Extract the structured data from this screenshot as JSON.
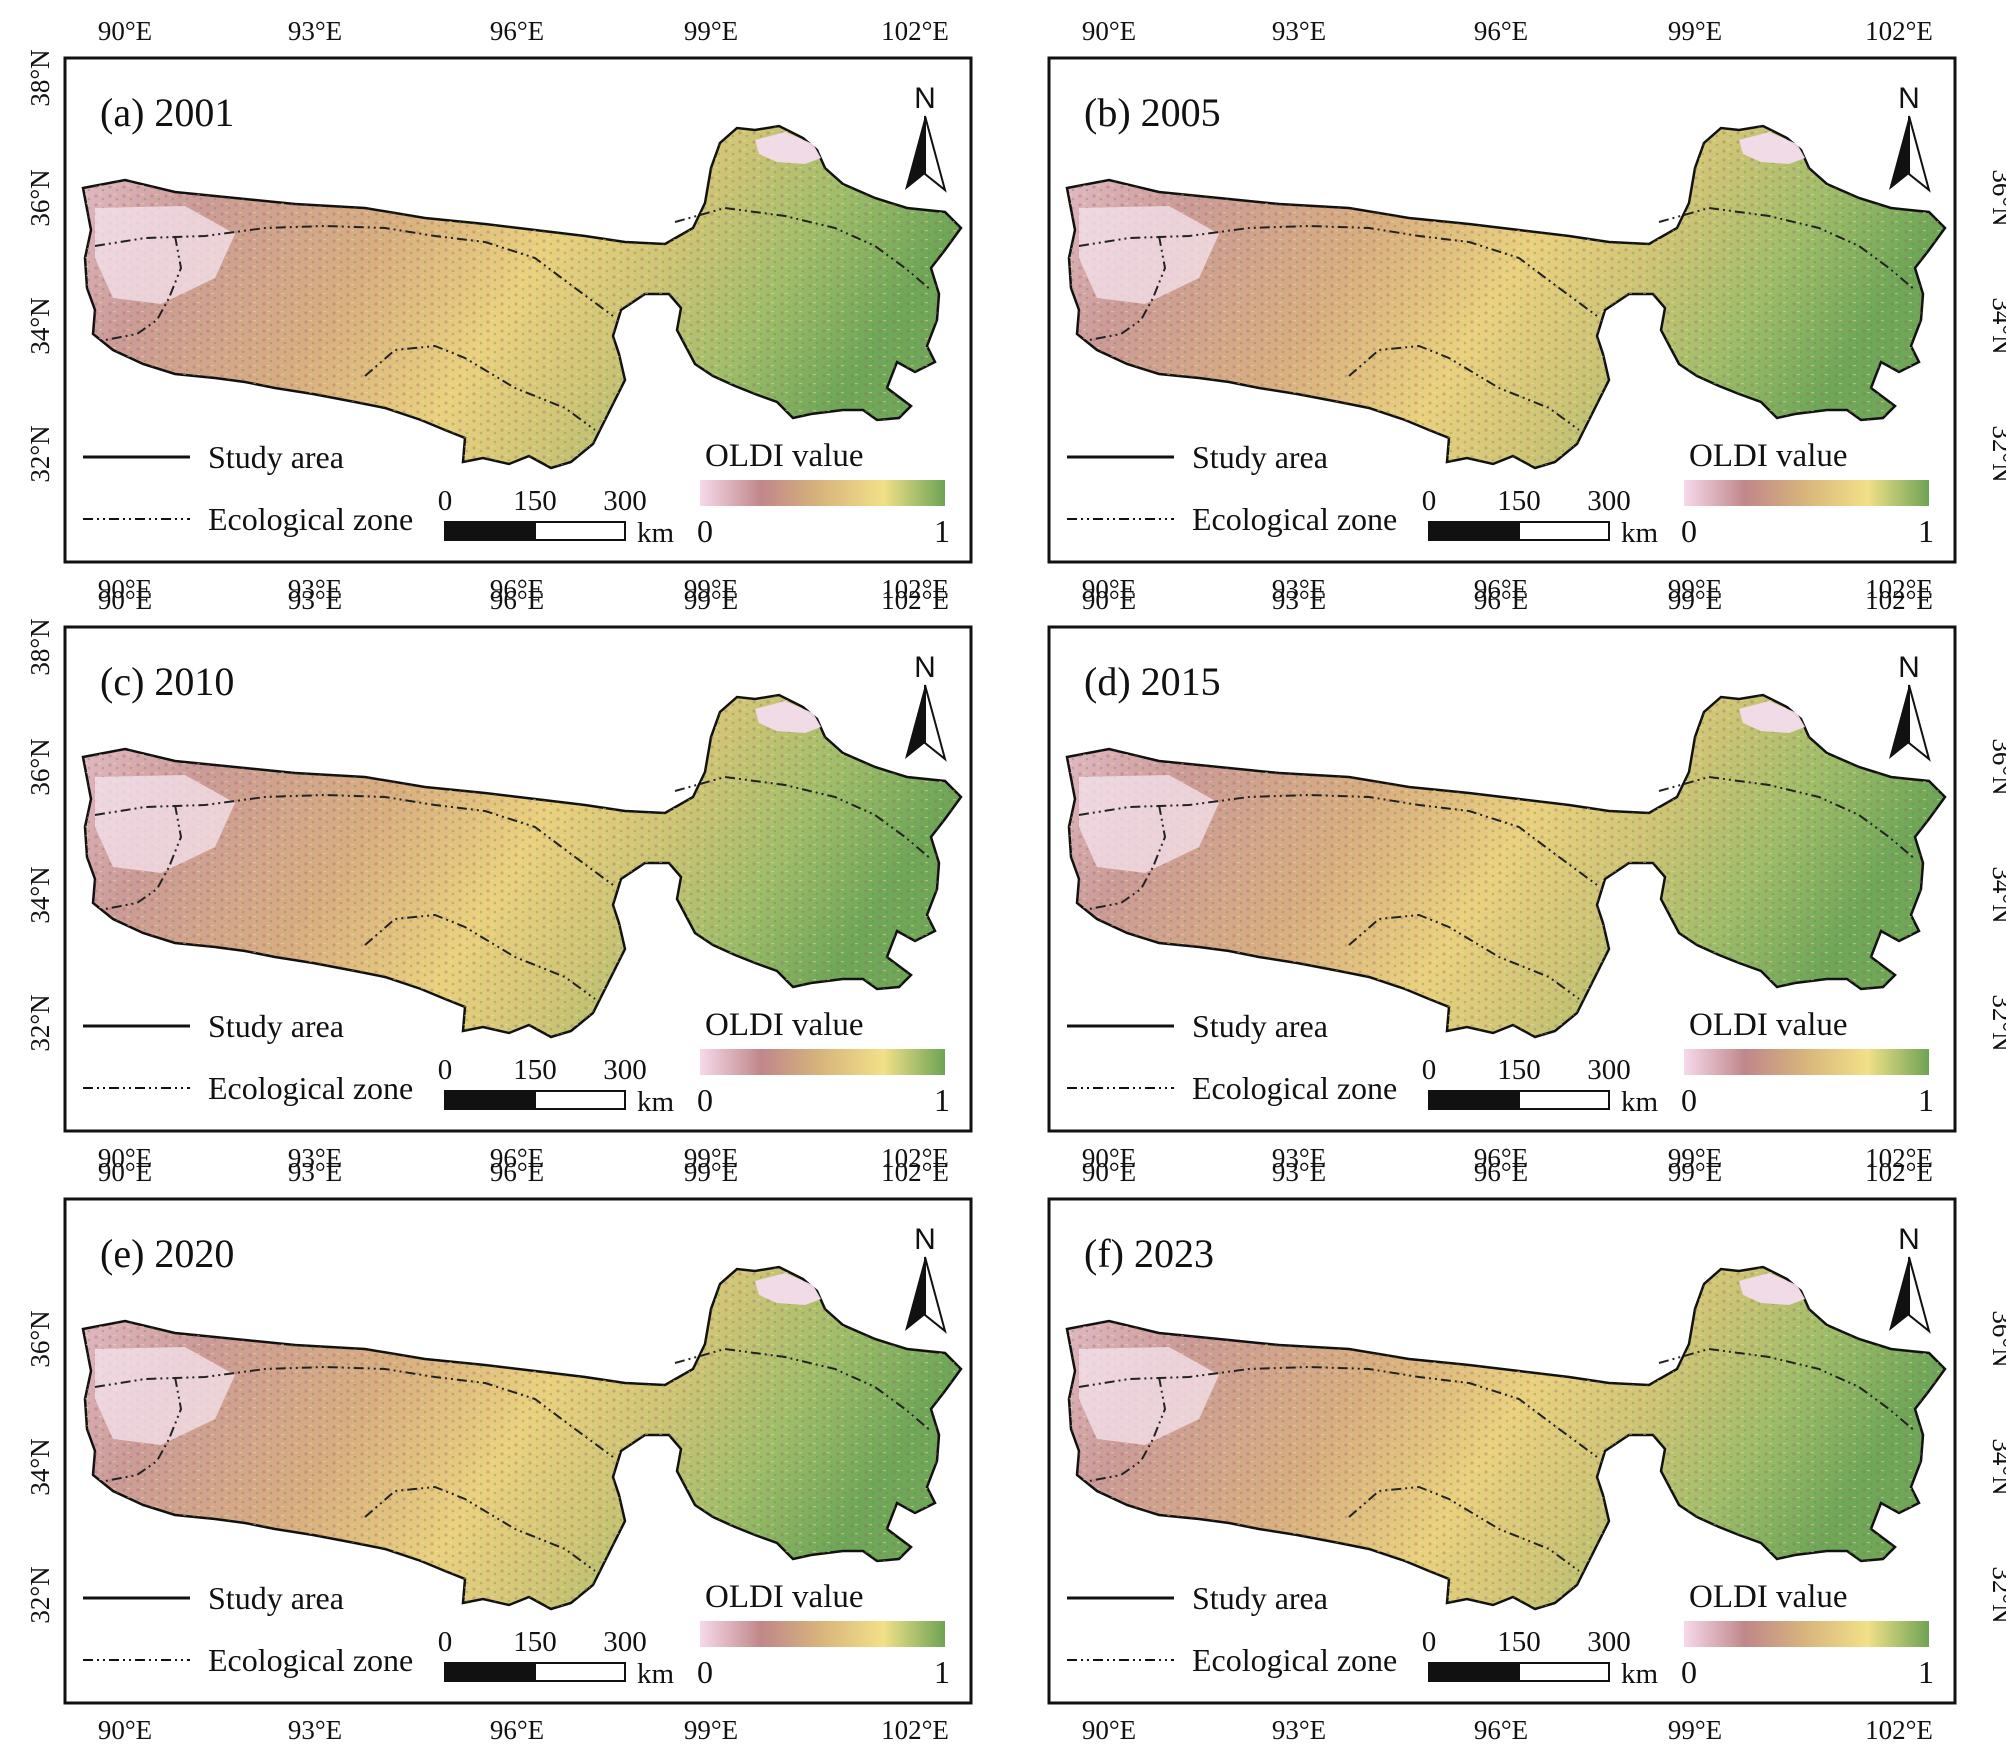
{
  "colors": {
    "ramp": [
      "#f6d9ea",
      "#c0878a",
      "#d8b67c",
      "#f1e088",
      "#6ea455"
    ],
    "frame": "#111111",
    "land_low": "#c9918f",
    "land_mid": "#e9cf7d",
    "land_high": "#6fa658",
    "bare": "#f3dcec"
  },
  "icons": {
    "north": "north-arrow-icon"
  },
  "shared": {
    "x_ticks": [
      "90°E",
      "93°E",
      "96°E",
      "99°E",
      "102°E"
    ],
    "legend": {
      "study_area": "Study area",
      "ecological_zone": "Ecological zone",
      "colorbar_title": "OLDI value",
      "colorbar_min": "0",
      "colorbar_max": "1"
    },
    "scale_bar": {
      "labels": [
        "0",
        "150",
        "300"
      ],
      "unit": "km"
    },
    "north_label": "N"
  },
  "panels": [
    {
      "title": "(a) 2001",
      "left_ticks": [
        "38°N",
        "36°N",
        "34°N",
        "32°N"
      ],
      "right_ticks": []
    },
    {
      "title": "(b) 2005",
      "left_ticks": [],
      "right_ticks": [
        "36°N",
        "34°N",
        "32°N"
      ]
    },
    {
      "title": "(c) 2010",
      "left_ticks": [
        "38°N",
        "36°N",
        "34°N",
        "32°N"
      ],
      "right_ticks": []
    },
    {
      "title": "(d) 2015",
      "left_ticks": [],
      "right_ticks": [
        "36°N",
        "34°N",
        "32°N"
      ]
    },
    {
      "title": "(e) 2020",
      "left_ticks": [
        "36°N",
        "34°N",
        "32°N"
      ],
      "right_ticks": []
    },
    {
      "title": "(f) 2023",
      "left_ticks": [],
      "right_ticks": [
        "36°N",
        "34°N",
        "32°N"
      ]
    }
  ]
}
